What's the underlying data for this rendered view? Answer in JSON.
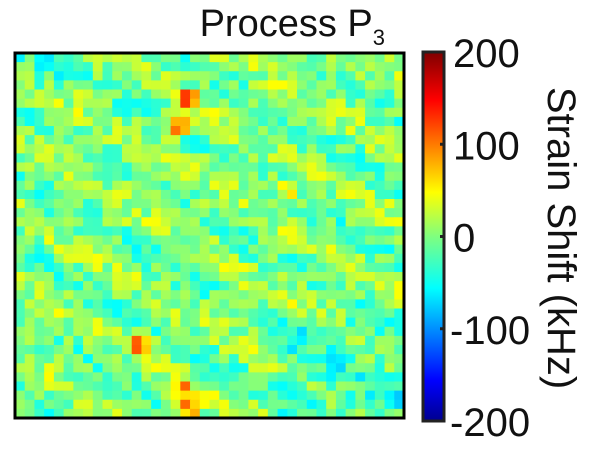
{
  "chart_data": {
    "type": "heatmap",
    "title": "Process P",
    "title_subscript": "3",
    "colorbar": {
      "label": "Strain Shift (kHz)",
      "min": -200,
      "max": 200,
      "ticks": [
        200,
        100,
        0,
        -100,
        -200
      ],
      "tick_labels": [
        "200",
        "100",
        "0",
        "-100",
        "-200"
      ],
      "colormap": "jet"
    },
    "field": {
      "rows": 40,
      "cols": 40,
      "baseline_khz": 0,
      "background_variation_khz": [
        -60,
        60
      ],
      "hot_spots": [
        {
          "row": 4.5,
          "col": 17.5,
          "value": 150
        },
        {
          "row": 7.5,
          "col": 16.5,
          "value": 170
        },
        {
          "row": 14.5,
          "col": 27.5,
          "value": 110
        },
        {
          "row": 31.5,
          "col": 12.5,
          "value": 175
        },
        {
          "row": 36.5,
          "col": 16.5,
          "value": 130
        },
        {
          "row": 38.5,
          "col": 17.5,
          "value": 160
        }
      ]
    },
    "xlabel": "",
    "ylabel": "",
    "axes_ticks": false,
    "grid": false
  }
}
